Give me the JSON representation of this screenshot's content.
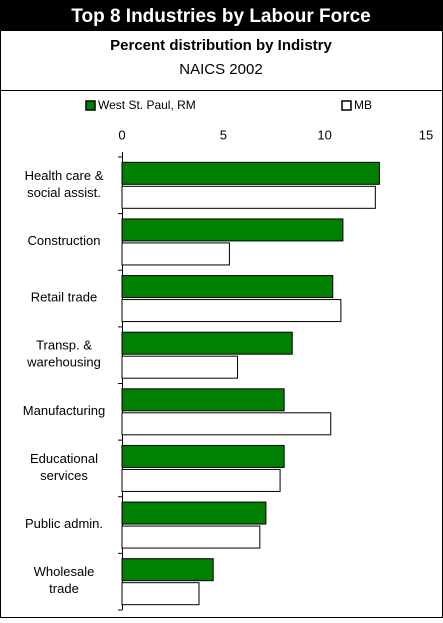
{
  "chart_data": {
    "type": "bar",
    "orientation": "horizontal",
    "title": "Top 8 Industries by Labour Force",
    "subtitle": "Percent distribution by Indistry",
    "caption": "NAICS 2002",
    "categories": [
      "Health care &\nsocial assist.",
      "Construction",
      "Retail trade",
      "Transp. &\nwarehousing",
      "Manufacturing",
      "Educational\nservices",
      "Public admin.",
      "Wholesale\ntrade"
    ],
    "series": [
      {
        "name": "West St. Paul, RM",
        "color": "#008000",
        "values": [
          12.7,
          10.9,
          10.4,
          8.4,
          8.0,
          8.0,
          7.1,
          4.5
        ]
      },
      {
        "name": "MB",
        "color": "#ffffff",
        "values": [
          12.5,
          5.3,
          10.8,
          5.7,
          10.3,
          7.8,
          6.8,
          3.8
        ]
      }
    ],
    "xlim": [
      0,
      15
    ],
    "xticks": [
      0,
      5,
      10,
      15
    ]
  }
}
